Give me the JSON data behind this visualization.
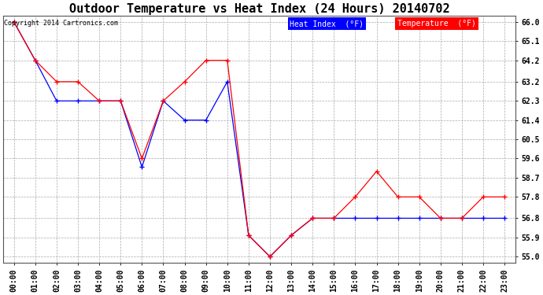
{
  "title": "Outdoor Temperature vs Heat Index (24 Hours) 20140702",
  "copyright": "Copyright 2014 Cartronics.com",
  "ylim": [
    54.72,
    66.28
  ],
  "ytick_vals": [
    55.0,
    55.9,
    56.8,
    57.8,
    58.7,
    59.6,
    60.5,
    61.4,
    62.3,
    63.2,
    64.2,
    65.1,
    66.0
  ],
  "ytick_labels": [
    "55.0",
    "55.9",
    "56.8",
    "57.8",
    "58.7",
    "59.6",
    "60.5",
    "61.4",
    "62.3",
    "63.2",
    "64.2",
    "65.1",
    "66.0"
  ],
  "x_labels": [
    "00:00",
    "01:00",
    "02:00",
    "03:00",
    "04:00",
    "05:00",
    "06:00",
    "07:00",
    "08:00",
    "09:00",
    "10:00",
    "11:00",
    "12:00",
    "13:00",
    "14:00",
    "15:00",
    "16:00",
    "17:00",
    "18:00",
    "19:00",
    "20:00",
    "21:00",
    "22:00",
    "23:00"
  ],
  "temperature": [
    66.0,
    64.2,
    63.2,
    63.2,
    62.3,
    62.3,
    59.6,
    62.3,
    63.2,
    64.2,
    64.2,
    56.0,
    55.0,
    56.0,
    56.8,
    56.8,
    57.8,
    59.0,
    57.8,
    57.8,
    56.8,
    56.8,
    57.8,
    57.8
  ],
  "heat_index": [
    66.0,
    64.2,
    62.3,
    62.3,
    62.3,
    62.3,
    59.2,
    62.3,
    61.4,
    61.4,
    63.2,
    56.0,
    55.0,
    56.0,
    56.8,
    56.8,
    56.8,
    56.8,
    56.8,
    56.8,
    56.8,
    56.8,
    56.8,
    56.8
  ],
  "temp_color": "#ff0000",
  "heat_color": "#0000ff",
  "bg_color": "#ffffff",
  "grid_color": "#aaaaaa",
  "title_fontsize": 11,
  "tick_fontsize": 7,
  "copyright_fontsize": 6,
  "legend_fontsize": 7
}
